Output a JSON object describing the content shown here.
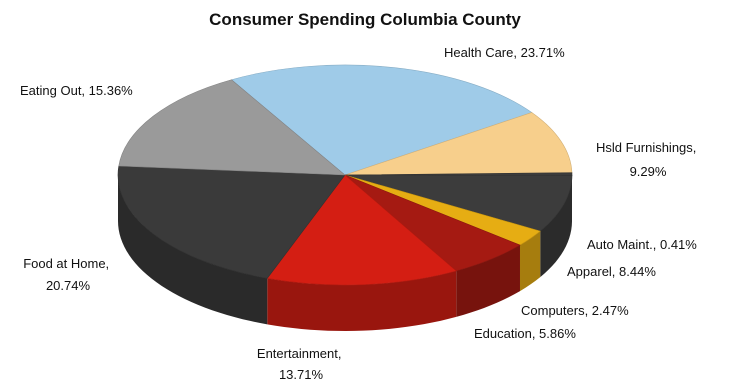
{
  "chart_data": {
    "type": "pie",
    "title": "Consumer Spending Columbia County",
    "slices": [
      {
        "name": "Health Care",
        "label": "Health Care, 23.71%",
        "value": 23.71,
        "color": "#9fcbe8"
      },
      {
        "name": "Hsld Furnishings",
        "label_lines": [
          "Hsld Furnishings,",
          "9.29%"
        ],
        "value": 9.29,
        "color": "#f7cf8c"
      },
      {
        "name": "Auto Maint.",
        "label": "Auto Maint., 0.41%",
        "value": 0.41,
        "color": "#3c3c3c"
      },
      {
        "name": "Apparel",
        "label": "Apparel, 8.44%",
        "value": 8.44,
        "color": "#3c3c3c"
      },
      {
        "name": "Computers",
        "label": "Computers, 2.47%",
        "value": 2.47,
        "color": "#e6ad13"
      },
      {
        "name": "Education",
        "label": "Education, 5.86%",
        "value": 5.86,
        "color": "#a51a12"
      },
      {
        "name": "Entertainment",
        "label_lines": [
          "Entertainment,",
          "13.71%"
        ],
        "value": 13.71,
        "color": "#d41e13"
      },
      {
        "name": "Food at Home",
        "label_lines": [
          "Food at Home,",
          "20.74%"
        ],
        "value": 20.74,
        "color": "#3a3a3a"
      },
      {
        "name": "Eating Out",
        "label": "Eating Out, 15.36%",
        "value": 15.36,
        "color": "#9a9a9a"
      }
    ]
  }
}
